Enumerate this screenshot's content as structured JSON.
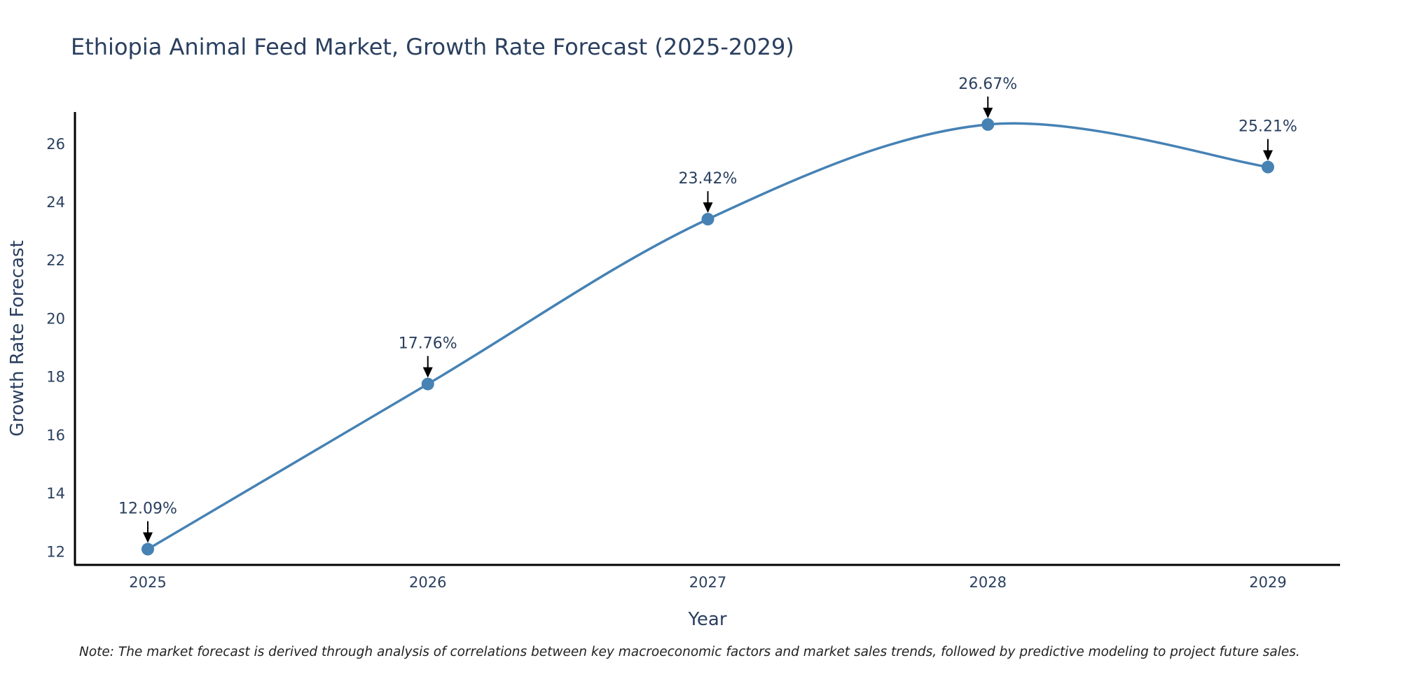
{
  "chart_data": {
    "type": "line",
    "title": "Ethiopia Animal Feed Market, Growth Rate Forecast (2025-2029)",
    "xlabel": "Year",
    "ylabel": "Growth Rate Forecast",
    "categories": [
      "2025",
      "2026",
      "2027",
      "2028",
      "2029"
    ],
    "values": [
      12.09,
      17.76,
      23.42,
      26.67,
      25.21
    ],
    "data_labels": [
      "12.09%",
      "17.76%",
      "23.42%",
      "26.67%",
      "25.21%"
    ],
    "yticks": [
      12,
      14,
      16,
      18,
      20,
      22,
      24,
      26
    ],
    "ylim": [
      11.55,
      27.1
    ],
    "grid": false,
    "line_shape": "spline",
    "color": "#4682b4",
    "note": "Note: The market forecast is derived through analysis of correlations between key macroeconomic factors and market sales trends, followed by predictive modeling to project future sales."
  }
}
